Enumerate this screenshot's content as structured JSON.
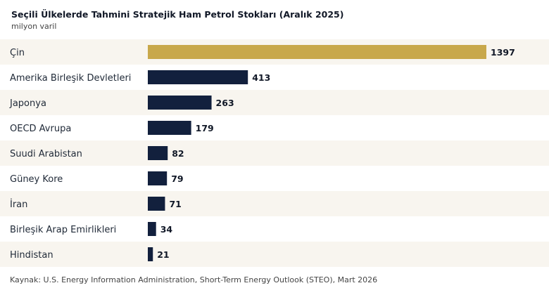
{
  "header": {
    "title": "Seçili Ülkelerde Tahmini Stratejik Ham Petrol Stokları (Aralık 2025)",
    "subtitle": "milyon varil"
  },
  "source": "Kaynak: U.S. Energy Information Administration, Short-Term Energy Outlook (STEO), Mart 2026",
  "colors": {
    "highlight": "#c8a84b",
    "bar": "#12203d",
    "row_alt": "#f8f5ef",
    "row": "#ffffff"
  },
  "chart_data": {
    "type": "bar",
    "orientation": "horizontal",
    "title": "Seçili Ülkelerde Tahmini Stratejik Ham Petrol Stokları (Aralık 2025)",
    "subtitle": "milyon varil",
    "categories": [
      "Çin",
      "Amerika Birleşik Devletleri",
      "Japonya",
      "OECD Avrupa",
      "Suudi Arabistan",
      "Güney Kore",
      "İran",
      "Birleşik Arap Emirlikleri",
      "Hindistan"
    ],
    "values": [
      1397,
      413,
      263,
      179,
      82,
      79,
      71,
      34,
      21
    ],
    "highlight_index": 0,
    "xlim": [
      0,
      1397
    ],
    "grid": false,
    "data_labels": true
  }
}
